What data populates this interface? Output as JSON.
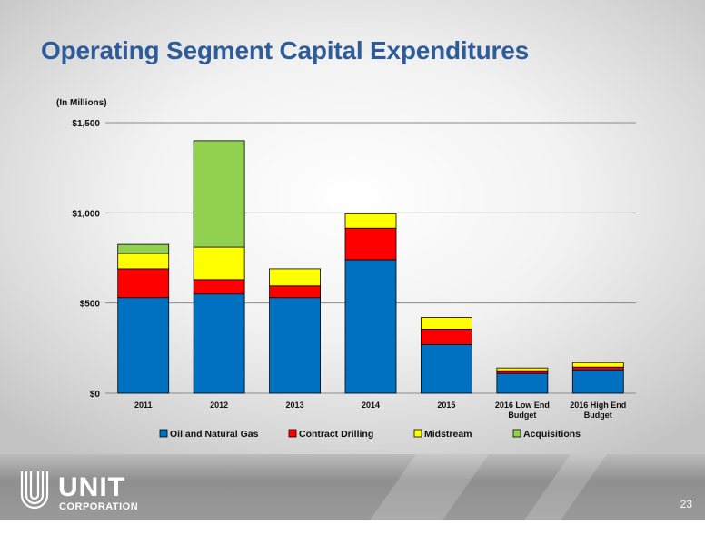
{
  "slide": {
    "title": "Operating Segment Capital Expenditures",
    "units_note": "(In Millions)",
    "page_number": "23",
    "logo_text": "UNIT",
    "logo_subtext": "CORPORATION"
  },
  "chart_data": {
    "type": "bar",
    "stacked": true,
    "title": "",
    "xlabel": "",
    "ylabel": "",
    "ylim": [
      0,
      1500
    ],
    "yticks": [
      0,
      500,
      1000,
      1500
    ],
    "ytick_labels": [
      "$0",
      "$500",
      "$1,000",
      "$1,500"
    ],
    "grid": true,
    "legend_position": "bottom",
    "categories": [
      [
        "2011"
      ],
      [
        "2012"
      ],
      [
        "2013"
      ],
      [
        "2014"
      ],
      [
        "2015"
      ],
      [
        "2016 Low End",
        "Budget"
      ],
      [
        "2016 High End",
        "Budget"
      ]
    ],
    "series": [
      {
        "name": "Oil and Natural Gas",
        "color": "#0070c0",
        "values": [
          530,
          550,
          530,
          740,
          270,
          110,
          130
        ]
      },
      {
        "name": "Contract Drilling",
        "color": "#ff0000",
        "values": [
          160,
          80,
          65,
          175,
          85,
          15,
          15
        ]
      },
      {
        "name": "Midstream",
        "color": "#ffff00",
        "values": [
          85,
          180,
          95,
          80,
          65,
          15,
          25
        ]
      },
      {
        "name": "Acquisitions",
        "color": "#92d050",
        "values": [
          50,
          590,
          0,
          0,
          0,
          0,
          0
        ]
      }
    ]
  }
}
